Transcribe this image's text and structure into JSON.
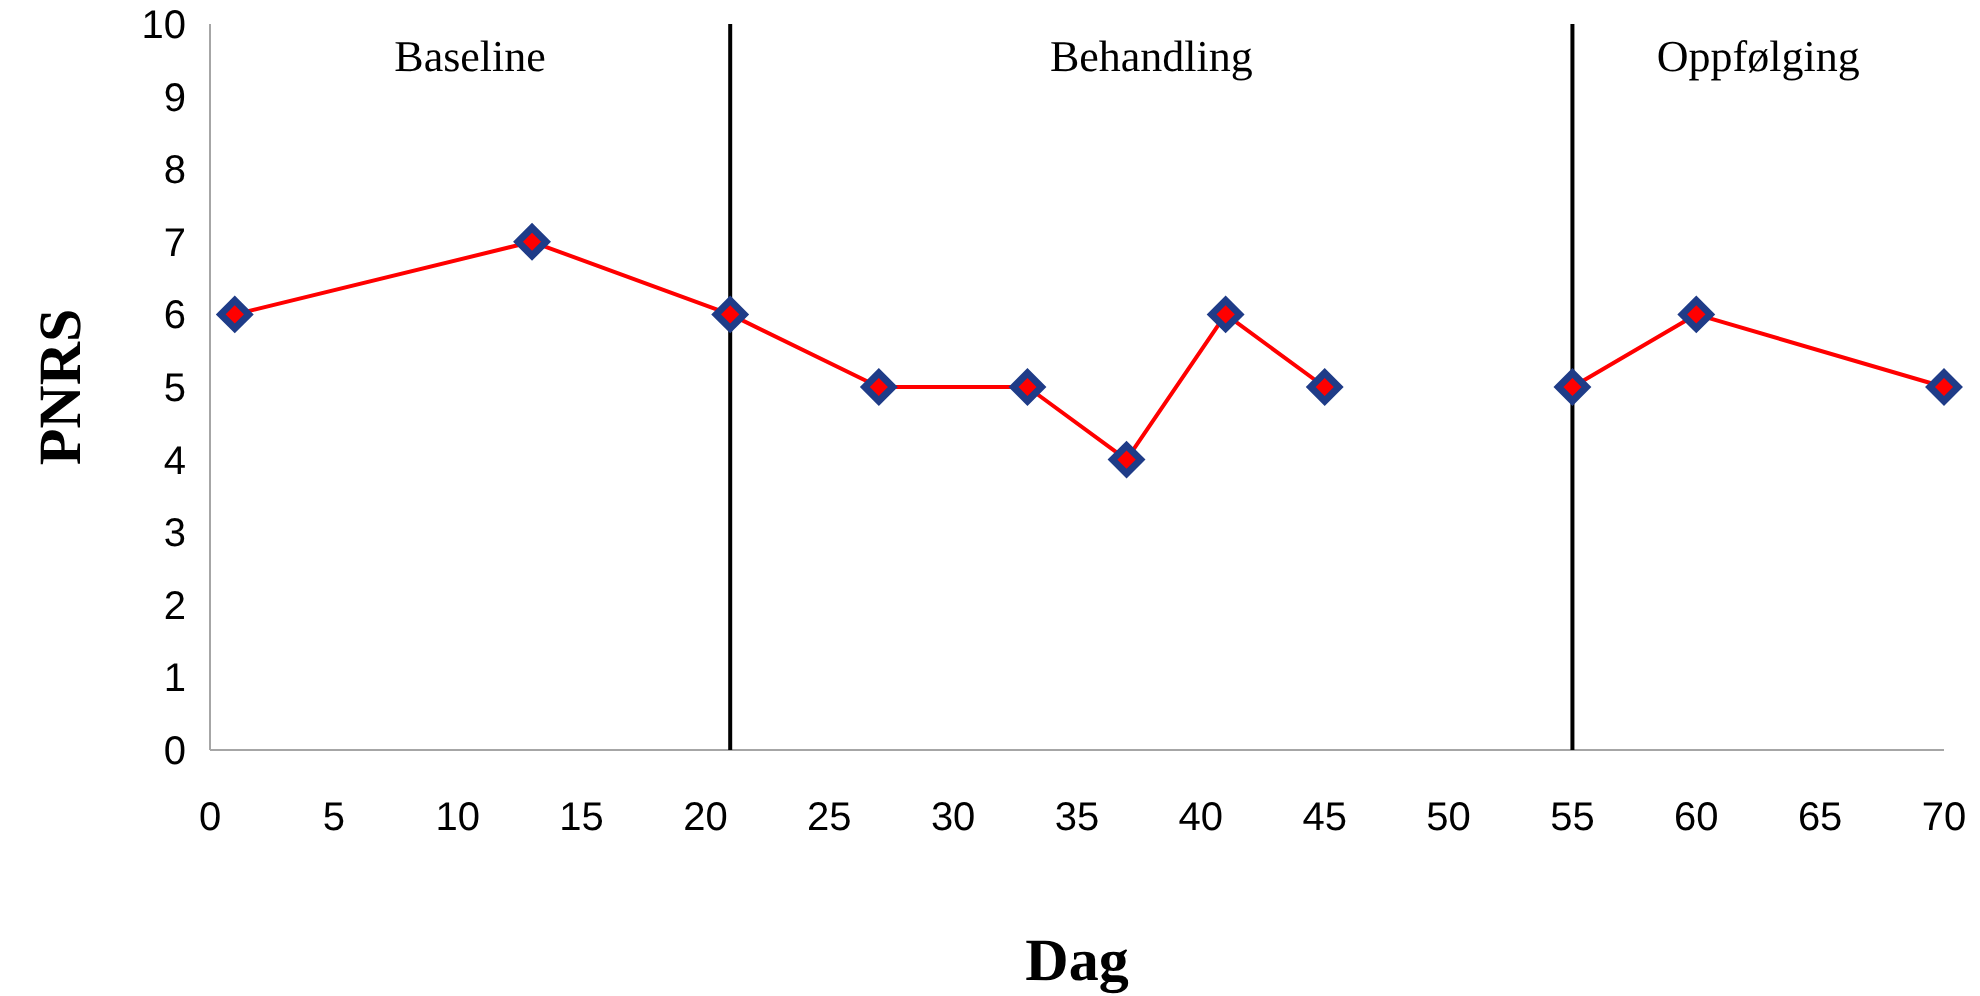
{
  "chart_data": {
    "type": "line",
    "xlabel": "Dag",
    "ylabel": "PNRS",
    "xlim": [
      0,
      70
    ],
    "xticks": [
      0,
      5,
      10,
      15,
      20,
      25,
      30,
      35,
      40,
      45,
      50,
      55,
      60,
      65,
      70
    ],
    "ylim": [
      0,
      10
    ],
    "yticks": [
      0,
      1,
      2,
      3,
      4,
      5,
      6,
      7,
      8,
      9,
      10
    ],
    "grid": false,
    "marker": "diamond",
    "line_style": "solid",
    "series": [
      {
        "color": "#ff0000",
        "x": [
          1,
          13,
          21,
          27,
          33,
          37,
          41,
          45
        ],
        "values": [
          6,
          7,
          6,
          5,
          5,
          4,
          6,
          5
        ]
      },
      {
        "color": "#ff0000",
        "x": [
          55,
          60,
          70
        ],
        "values": [
          5,
          6,
          5
        ]
      }
    ],
    "ref_lines": [
      {
        "axis": "x",
        "value": 21,
        "color": "#000000"
      },
      {
        "axis": "x",
        "value": 55,
        "color": "#000000"
      }
    ],
    "annotations": [
      "Baseline",
      "Behandling",
      "Oppfølging"
    ]
  }
}
